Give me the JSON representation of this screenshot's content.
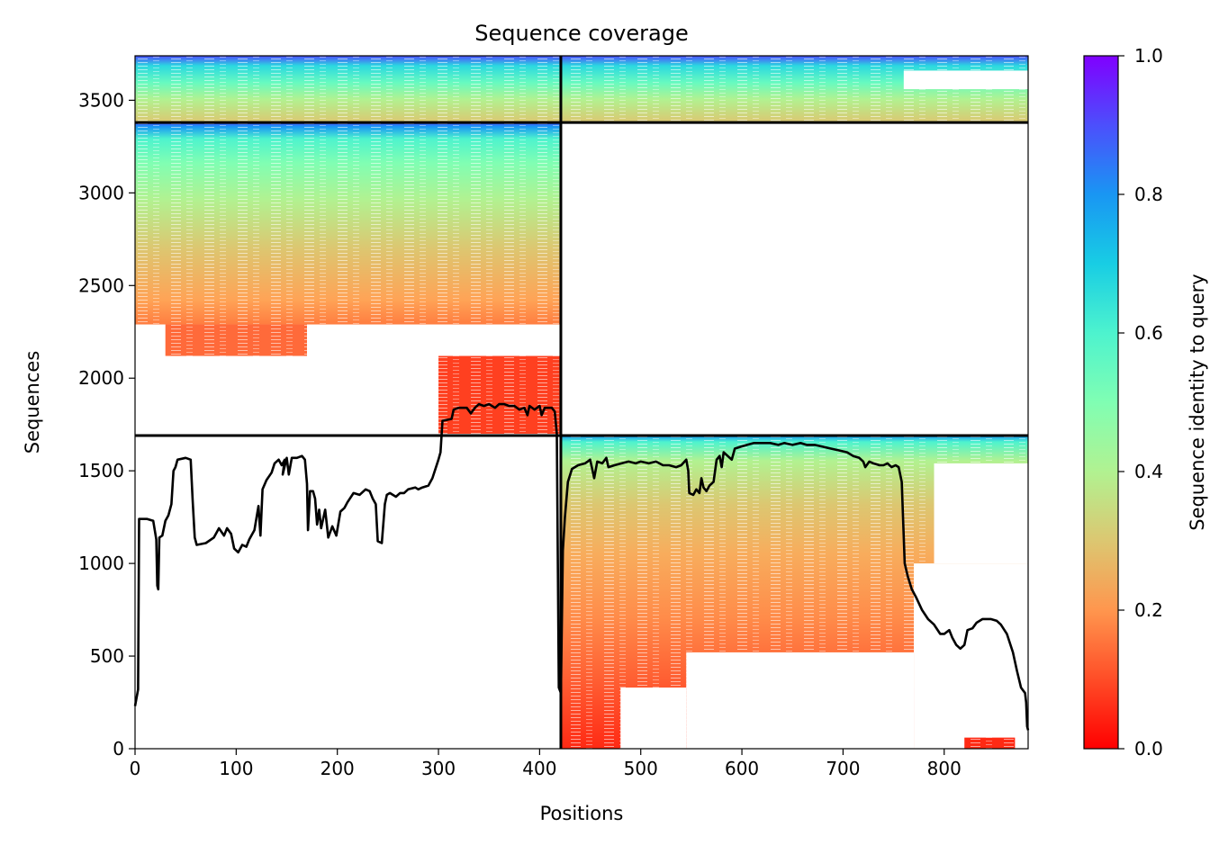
{
  "chart_data": {
    "type": "heatmap",
    "title": "Sequence coverage",
    "xlabel": "Positions",
    "ylabel": "Sequences",
    "xlim": [
      0,
      883
    ],
    "ylim": [
      0,
      3740
    ],
    "xticks": [
      0,
      100,
      200,
      300,
      400,
      500,
      600,
      700,
      800
    ],
    "yticks": [
      0,
      500,
      1000,
      1500,
      2000,
      2500,
      3000,
      3500
    ],
    "colorbar": {
      "label": "Sequence identity to query",
      "range": [
        0.0,
        1.0
      ],
      "ticks": [
        "0.0",
        "0.2",
        "0.4",
        "0.6",
        "0.8",
        "1.0"
      ],
      "colormap": "rainbow_r"
    },
    "chain_boundaries": {
      "position": 421,
      "sequence_rows": [
        1690,
        3380
      ]
    },
    "coverage_line": {
      "color": "#000000",
      "points": [
        [
          0,
          230
        ],
        [
          3,
          320
        ],
        [
          4,
          1240
        ],
        [
          12,
          1240
        ],
        [
          18,
          1230
        ],
        [
          21,
          1130
        ],
        [
          22,
          880
        ],
        [
          23,
          860
        ],
        [
          24,
          1140
        ],
        [
          27,
          1150
        ],
        [
          30,
          1230
        ],
        [
          33,
          1260
        ],
        [
          36,
          1320
        ],
        [
          38,
          1500
        ],
        [
          40,
          1520
        ],
        [
          42,
          1560
        ],
        [
          50,
          1570
        ],
        [
          55,
          1560
        ],
        [
          57,
          1340
        ],
        [
          59,
          1140
        ],
        [
          61,
          1100
        ],
        [
          70,
          1110
        ],
        [
          78,
          1140
        ],
        [
          83,
          1190
        ],
        [
          88,
          1150
        ],
        [
          91,
          1190
        ],
        [
          95,
          1160
        ],
        [
          98,
          1080
        ],
        [
          102,
          1060
        ],
        [
          106,
          1100
        ],
        [
          110,
          1090
        ],
        [
          113,
          1130
        ],
        [
          118,
          1180
        ],
        [
          122,
          1310
        ],
        [
          124,
          1150
        ],
        [
          126,
          1400
        ],
        [
          130,
          1450
        ],
        [
          135,
          1490
        ],
        [
          138,
          1540
        ],
        [
          142,
          1560
        ],
        [
          145,
          1530
        ],
        [
          148,
          1560
        ],
        [
          146,
          1480
        ],
        [
          150,
          1570
        ],
        [
          152,
          1480
        ],
        [
          155,
          1570
        ],
        [
          160,
          1570
        ],
        [
          165,
          1580
        ],
        [
          168,
          1560
        ],
        [
          170,
          1430
        ],
        [
          171,
          1180
        ],
        [
          173,
          1390
        ],
        [
          176,
          1390
        ],
        [
          178,
          1350
        ],
        [
          180,
          1210
        ],
        [
          182,
          1290
        ],
        [
          184,
          1190
        ],
        [
          188,
          1290
        ],
        [
          191,
          1140
        ],
        [
          195,
          1200
        ],
        [
          199,
          1150
        ],
        [
          203,
          1280
        ],
        [
          207,
          1300
        ],
        [
          210,
          1330
        ],
        [
          216,
          1380
        ],
        [
          222,
          1370
        ],
        [
          228,
          1400
        ],
        [
          232,
          1390
        ],
        [
          235,
          1350
        ],
        [
          238,
          1320
        ],
        [
          240,
          1120
        ],
        [
          244,
          1110
        ],
        [
          247,
          1320
        ],
        [
          249,
          1370
        ],
        [
          252,
          1380
        ],
        [
          258,
          1360
        ],
        [
          262,
          1380
        ],
        [
          266,
          1380
        ],
        [
          270,
          1400
        ],
        [
          277,
          1410
        ],
        [
          280,
          1400
        ],
        [
          284,
          1410
        ],
        [
          290,
          1420
        ],
        [
          294,
          1460
        ],
        [
          300,
          1560
        ],
        [
          302,
          1600
        ],
        [
          304,
          1770
        ],
        [
          313,
          1780
        ],
        [
          315,
          1830
        ],
        [
          320,
          1840
        ],
        [
          328,
          1840
        ],
        [
          332,
          1810
        ],
        [
          336,
          1840
        ],
        [
          340,
          1860
        ],
        [
          345,
          1850
        ],
        [
          350,
          1860
        ],
        [
          356,
          1840
        ],
        [
          360,
          1860
        ],
        [
          365,
          1860
        ],
        [
          370,
          1850
        ],
        [
          375,
          1850
        ],
        [
          380,
          1830
        ],
        [
          385,
          1840
        ],
        [
          388,
          1800
        ],
        [
          390,
          1850
        ],
        [
          395,
          1830
        ],
        [
          400,
          1850
        ],
        [
          402,
          1800
        ],
        [
          405,
          1840
        ],
        [
          412,
          1840
        ],
        [
          415,
          1820
        ],
        [
          417,
          1700
        ],
        [
          419,
          330
        ],
        [
          421,
          300
        ],
        [
          423,
          1070
        ],
        [
          425,
          1250
        ],
        [
          428,
          1440
        ],
        [
          432,
          1510
        ],
        [
          438,
          1530
        ],
        [
          445,
          1540
        ],
        [
          450,
          1560
        ],
        [
          452,
          1510
        ],
        [
          454,
          1460
        ],
        [
          457,
          1550
        ],
        [
          462,
          1540
        ],
        [
          466,
          1570
        ],
        [
          468,
          1520
        ],
        [
          474,
          1530
        ],
        [
          481,
          1540
        ],
        [
          488,
          1550
        ],
        [
          495,
          1540
        ],
        [
          500,
          1550
        ],
        [
          508,
          1540
        ],
        [
          515,
          1550
        ],
        [
          522,
          1530
        ],
        [
          528,
          1530
        ],
        [
          535,
          1520
        ],
        [
          540,
          1530
        ],
        [
          545,
          1560
        ],
        [
          547,
          1500
        ],
        [
          548,
          1380
        ],
        [
          552,
          1370
        ],
        [
          555,
          1400
        ],
        [
          558,
          1380
        ],
        [
          560,
          1460
        ],
        [
          562,
          1410
        ],
        [
          565,
          1390
        ],
        [
          568,
          1420
        ],
        [
          572,
          1440
        ],
        [
          575,
          1560
        ],
        [
          578,
          1580
        ],
        [
          580,
          1520
        ],
        [
          582,
          1600
        ],
        [
          586,
          1580
        ],
        [
          590,
          1560
        ],
        [
          593,
          1620
        ],
        [
          599,
          1630
        ],
        [
          605,
          1640
        ],
        [
          612,
          1650
        ],
        [
          620,
          1650
        ],
        [
          628,
          1650
        ],
        [
          636,
          1640
        ],
        [
          642,
          1650
        ],
        [
          650,
          1640
        ],
        [
          658,
          1650
        ],
        [
          664,
          1640
        ],
        [
          672,
          1640
        ],
        [
          680,
          1630
        ],
        [
          688,
          1620
        ],
        [
          696,
          1610
        ],
        [
          704,
          1600
        ],
        [
          710,
          1580
        ],
        [
          716,
          1570
        ],
        [
          720,
          1550
        ],
        [
          722,
          1520
        ],
        [
          726,
          1550
        ],
        [
          730,
          1540
        ],
        [
          736,
          1530
        ],
        [
          740,
          1530
        ],
        [
          744,
          1540
        ],
        [
          748,
          1520
        ],
        [
          752,
          1530
        ],
        [
          755,
          1520
        ],
        [
          758,
          1440
        ],
        [
          761,
          1000
        ],
        [
          764,
          930
        ],
        [
          768,
          860
        ],
        [
          772,
          820
        ],
        [
          778,
          750
        ],
        [
          784,
          700
        ],
        [
          790,
          670
        ],
        [
          796,
          620
        ],
        [
          800,
          620
        ],
        [
          805,
          640
        ],
        [
          808,
          600
        ],
        [
          812,
          560
        ],
        [
          816,
          540
        ],
        [
          820,
          560
        ],
        [
          823,
          640
        ],
        [
          828,
          650
        ],
        [
          832,
          680
        ],
        [
          838,
          700
        ],
        [
          846,
          700
        ],
        [
          852,
          690
        ],
        [
          856,
          670
        ],
        [
          862,
          620
        ],
        [
          868,
          520
        ],
        [
          872,
          420
        ],
        [
          876,
          330
        ],
        [
          880,
          300
        ],
        [
          881,
          250
        ],
        [
          882,
          120
        ],
        [
          883,
          100
        ]
      ]
    }
  }
}
